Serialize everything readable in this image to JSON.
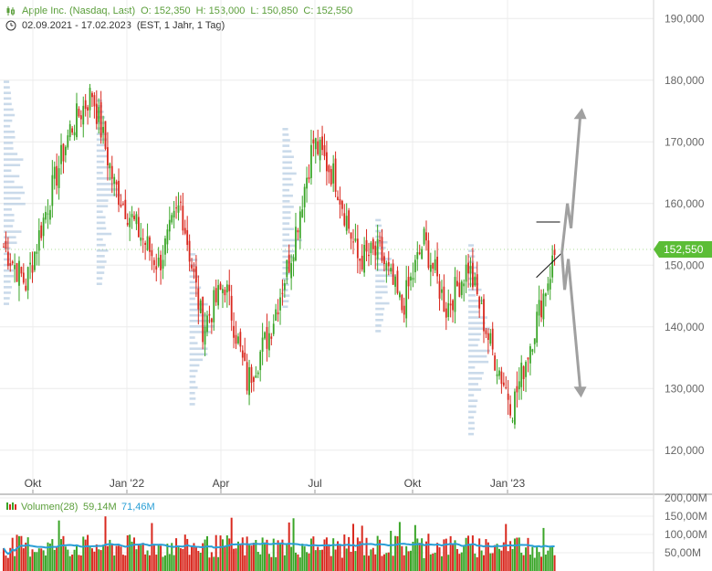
{
  "header": {
    "title": "Apple Inc. (Nasdaq, Last)",
    "open": "O: 152,350",
    "high": "H: 153,000",
    "low": "L: 150,850",
    "close": "C: 152,550",
    "range": "02.09.2021 - 17.02.2023",
    "settings": "(EST, 1 Jahr, 1 Tag)"
  },
  "colors": {
    "up": "#3aa528",
    "down": "#d9291f",
    "last_tag": "#5bbd36",
    "volume_ma": "#2a9fd6",
    "profile": "#b8cde3",
    "arrow": "#a0a0a0",
    "header_green": "#5a9e3a"
  },
  "icons": {
    "header_chart": "candlestick-icon",
    "header_clock": "clock-icon"
  },
  "chart_data": [
    {
      "type": "candlestick",
      "title": "Apple Inc. (Nasdaq, Last)",
      "y_axis": {
        "ticks": [
          120,
          130,
          140,
          150,
          160,
          170,
          180,
          190
        ],
        "tick_labels": [
          "120,000",
          "130,000",
          "140,000",
          "150,000",
          "160,000",
          "170,000",
          "180,000",
          "190,000"
        ],
        "range": [
          113,
          193
        ]
      },
      "x_axis": {
        "tick_labels": [
          "Okt",
          "Jan '22",
          "Apr",
          "Jul",
          "Okt",
          "Jan '23"
        ]
      },
      "last_price": "152,550",
      "grid": true,
      "trend_path_months": [
        [
          0,
          153
        ],
        [
          1,
          147
        ],
        [
          2,
          160
        ],
        [
          3,
          172
        ],
        [
          4,
          178
        ],
        [
          5,
          163
        ],
        [
          6,
          156
        ],
        [
          7,
          150
        ],
        [
          8,
          160
        ],
        [
          9,
          140
        ],
        [
          10,
          147
        ],
        [
          11,
          131
        ],
        [
          12,
          139
        ],
        [
          13,
          152
        ],
        [
          14,
          170
        ],
        [
          15,
          164
        ],
        [
          16,
          151
        ],
        [
          17,
          152
        ],
        [
          18,
          143
        ],
        [
          19,
          154
        ],
        [
          20,
          143
        ],
        [
          21,
          150
        ],
        [
          22,
          137
        ],
        [
          23,
          127
        ],
        [
          24,
          140
        ],
        [
          25,
          153
        ]
      ],
      "projection": {
        "up_target": 174,
        "down_target": 130
      }
    },
    {
      "type": "bar",
      "title": "Volumen(28)",
      "current_volume": "59,14M",
      "moving_average": "71,46M",
      "y_axis": {
        "ticks": [
          50,
          100,
          150,
          200
        ],
        "tick_labels": [
          "50,00M",
          "100,00M",
          "150,00M",
          "200,00M"
        ],
        "range": [
          0,
          200
        ]
      }
    }
  ]
}
